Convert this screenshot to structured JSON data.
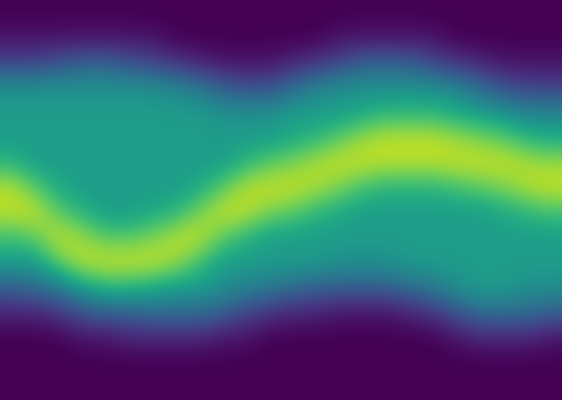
{
  "chart_data": {
    "type": "heatmap",
    "color": "viridis",
    "tick_labels": false,
    "color_range": [
      0,
      100
    ],
    "cells": [
      [
        0,
        0,
        0,
        0,
        0,
        0,
        0,
        0,
        0,
        0,
        0,
        0,
        0,
        0,
        0,
        0,
        0,
        0,
        0,
        0,
        0,
        0,
        0,
        0
      ],
      [
        5,
        5,
        5,
        5,
        5,
        5,
        5,
        0,
        0,
        0,
        0,
        0,
        0,
        0,
        5,
        5,
        5,
        5,
        5,
        0,
        0,
        0,
        0,
        0
      ],
      [
        20,
        20,
        25,
        30,
        30,
        25,
        20,
        15,
        10,
        5,
        5,
        5,
        10,
        15,
        20,
        30,
        30,
        30,
        20,
        15,
        10,
        5,
        5,
        5
      ],
      [
        50,
        50,
        50,
        50,
        50,
        50,
        50,
        45,
        40,
        30,
        25,
        25,
        35,
        45,
        50,
        50,
        50,
        50,
        50,
        45,
        35,
        25,
        20,
        20
      ],
      [
        55,
        55,
        55,
        55,
        55,
        55,
        55,
        55,
        55,
        50,
        50,
        50,
        55,
        55,
        55,
        60,
        65,
        65,
        65,
        60,
        55,
        50,
        45,
        45
      ],
      [
        55,
        55,
        55,
        55,
        55,
        55,
        55,
        55,
        55,
        55,
        55,
        55,
        60,
        65,
        75,
        85,
        90,
        90,
        90,
        85,
        80,
        75,
        65,
        60
      ],
      [
        65,
        55,
        55,
        55,
        55,
        55,
        55,
        55,
        55,
        55,
        65,
        75,
        80,
        88,
        92,
        92,
        90,
        90,
        90,
        92,
        92,
        92,
        88,
        85
      ],
      [
        90,
        75,
        60,
        55,
        55,
        55,
        55,
        55,
        60,
        75,
        90,
        92,
        92,
        88,
        80,
        70,
        65,
        65,
        65,
        70,
        75,
        80,
        88,
        92
      ],
      [
        90,
        92,
        75,
        65,
        55,
        55,
        60,
        65,
        80,
        92,
        90,
        80,
        75,
        65,
        60,
        55,
        55,
        55,
        55,
        55,
        55,
        60,
        65,
        70
      ],
      [
        70,
        75,
        92,
        85,
        75,
        75,
        80,
        90,
        92,
        75,
        65,
        55,
        55,
        55,
        55,
        55,
        55,
        55,
        55,
        55,
        55,
        55,
        55,
        55
      ],
      [
        55,
        55,
        75,
        90,
        92,
        92,
        92,
        85,
        70,
        55,
        55,
        55,
        55,
        55,
        50,
        50,
        50,
        55,
        55,
        55,
        55,
        55,
        55,
        55
      ],
      [
        30,
        35,
        40,
        55,
        65,
        65,
        60,
        55,
        55,
        50,
        45,
        40,
        35,
        30,
        30,
        30,
        30,
        35,
        40,
        50,
        55,
        55,
        50,
        50
      ],
      [
        10,
        10,
        15,
        25,
        30,
        30,
        35,
        35,
        35,
        30,
        20,
        15,
        10,
        10,
        5,
        5,
        5,
        10,
        15,
        25,
        35,
        35,
        35,
        30
      ],
      [
        0,
        0,
        0,
        5,
        5,
        10,
        10,
        10,
        10,
        5,
        5,
        0,
        0,
        0,
        0,
        0,
        0,
        0,
        0,
        5,
        10,
        10,
        10,
        5
      ],
      [
        0,
        0,
        0,
        0,
        0,
        0,
        0,
        0,
        0,
        0,
        0,
        0,
        0,
        0,
        0,
        0,
        0,
        0,
        0,
        0,
        0,
        0,
        0,
        0
      ],
      [
        0,
        0,
        0,
        0,
        0,
        0,
        0,
        0,
        0,
        0,
        0,
        0,
        0,
        0,
        0,
        0,
        0,
        0,
        0,
        0,
        0,
        0,
        0,
        0
      ]
    ]
  }
}
